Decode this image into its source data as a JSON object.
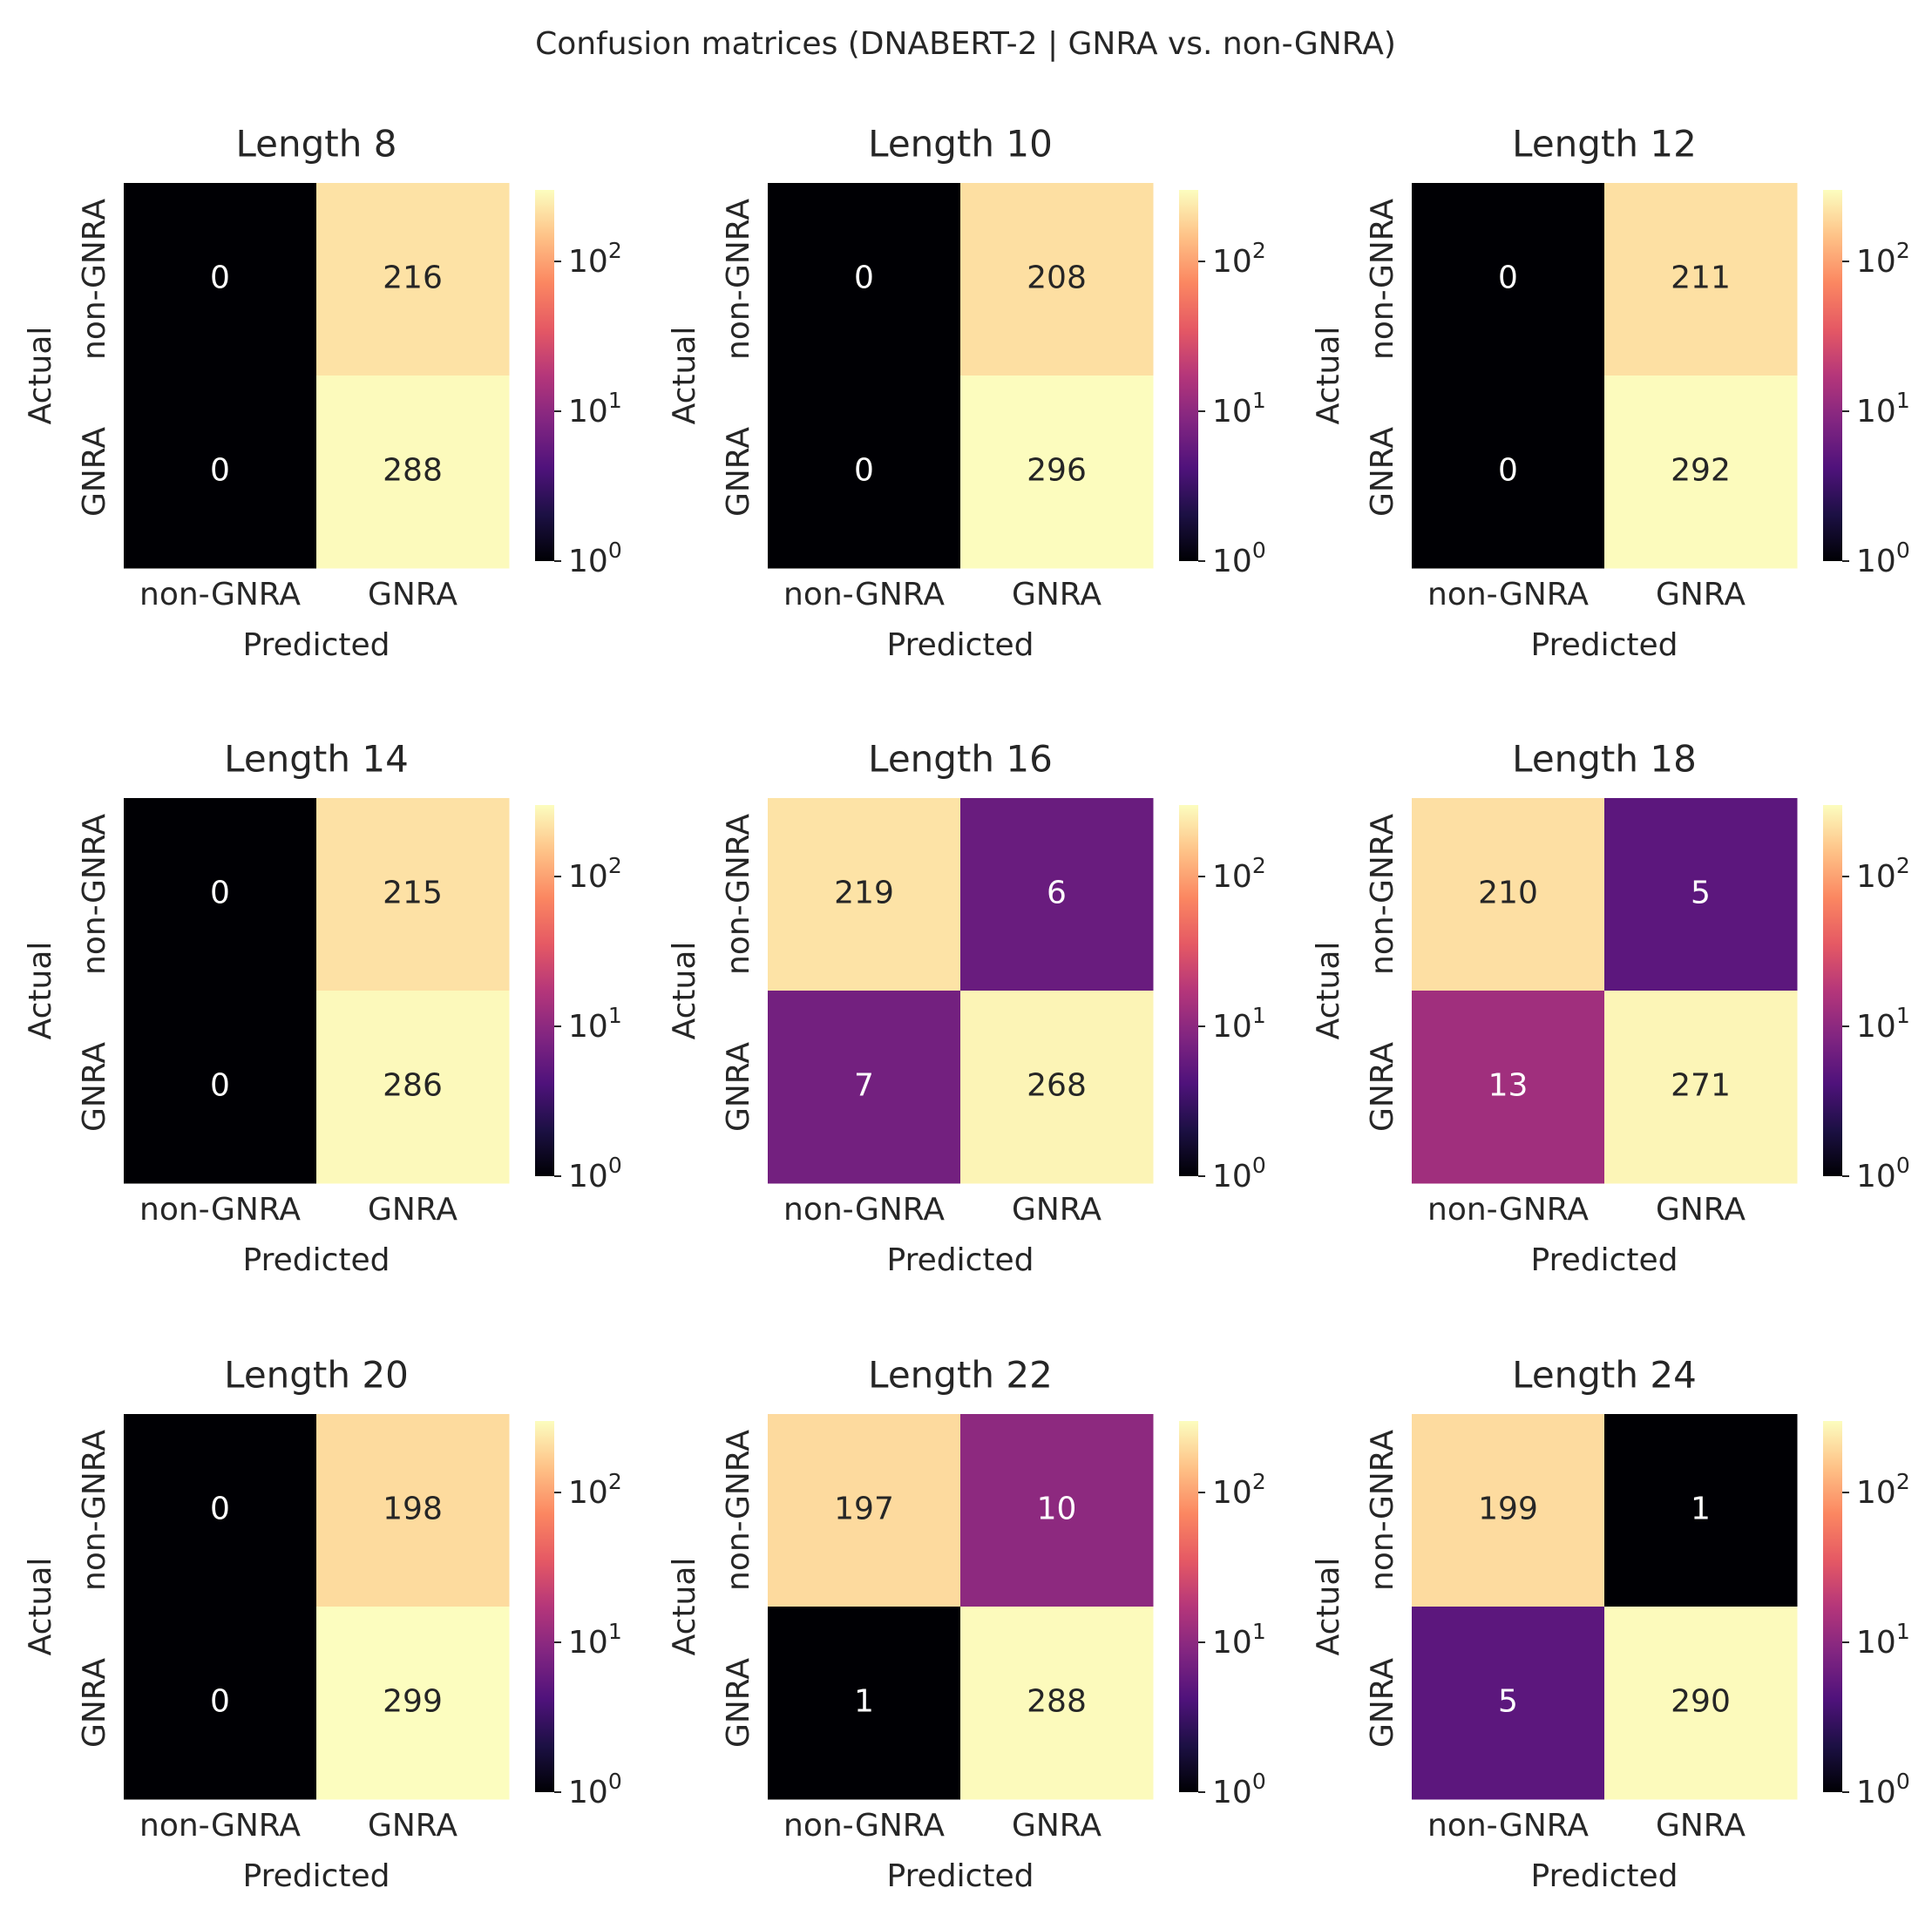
{
  "figure_title": "Confusion matrices (DNABERT-2 | GNRA vs. non-GNRA)",
  "colorbar": {
    "colormap": "magma",
    "scale": "log",
    "range": [
      1,
      300
    ],
    "tick_labels": [
      {
        "base": "10",
        "exp": "0",
        "value": 1
      },
      {
        "base": "10",
        "exp": "1",
        "value": 10
      },
      {
        "base": "10",
        "exp": "2",
        "value": 100
      }
    ]
  },
  "chart_data": [
    {
      "type": "heatmap",
      "title": "Length 8",
      "xlabel": "Predicted",
      "ylabel": "Actual",
      "x_categories": [
        "non-GNRA",
        "GNRA"
      ],
      "y_categories": [
        "non-GNRA",
        "GNRA"
      ],
      "values": [
        [
          0,
          216
        ],
        [
          0,
          288
        ]
      ]
    },
    {
      "type": "heatmap",
      "title": "Length 10",
      "xlabel": "Predicted",
      "ylabel": "Actual",
      "x_categories": [
        "non-GNRA",
        "GNRA"
      ],
      "y_categories": [
        "non-GNRA",
        "GNRA"
      ],
      "values": [
        [
          0,
          208
        ],
        [
          0,
          296
        ]
      ]
    },
    {
      "type": "heatmap",
      "title": "Length 12",
      "xlabel": "Predicted",
      "ylabel": "Actual",
      "x_categories": [
        "non-GNRA",
        "GNRA"
      ],
      "y_categories": [
        "non-GNRA",
        "GNRA"
      ],
      "values": [
        [
          0,
          211
        ],
        [
          0,
          292
        ]
      ]
    },
    {
      "type": "heatmap",
      "title": "Length 14",
      "xlabel": "Predicted",
      "ylabel": "Actual",
      "x_categories": [
        "non-GNRA",
        "GNRA"
      ],
      "y_categories": [
        "non-GNRA",
        "GNRA"
      ],
      "values": [
        [
          0,
          215
        ],
        [
          0,
          286
        ]
      ]
    },
    {
      "type": "heatmap",
      "title": "Length 16",
      "xlabel": "Predicted",
      "ylabel": "Actual",
      "x_categories": [
        "non-GNRA",
        "GNRA"
      ],
      "y_categories": [
        "non-GNRA",
        "GNRA"
      ],
      "values": [
        [
          219,
          6
        ],
        [
          7,
          268
        ]
      ]
    },
    {
      "type": "heatmap",
      "title": "Length 18",
      "xlabel": "Predicted",
      "ylabel": "Actual",
      "x_categories": [
        "non-GNRA",
        "GNRA"
      ],
      "y_categories": [
        "non-GNRA",
        "GNRA"
      ],
      "values": [
        [
          210,
          5
        ],
        [
          13,
          271
        ]
      ]
    },
    {
      "type": "heatmap",
      "title": "Length 20",
      "xlabel": "Predicted",
      "ylabel": "Actual",
      "x_categories": [
        "non-GNRA",
        "GNRA"
      ],
      "y_categories": [
        "non-GNRA",
        "GNRA"
      ],
      "values": [
        [
          0,
          198
        ],
        [
          0,
          299
        ]
      ]
    },
    {
      "type": "heatmap",
      "title": "Length 22",
      "xlabel": "Predicted",
      "ylabel": "Actual",
      "x_categories": [
        "non-GNRA",
        "GNRA"
      ],
      "y_categories": [
        "non-GNRA",
        "GNRA"
      ],
      "values": [
        [
          197,
          10
        ],
        [
          1,
          288
        ]
      ]
    },
    {
      "type": "heatmap",
      "title": "Length 24",
      "xlabel": "Predicted",
      "ylabel": "Actual",
      "x_categories": [
        "non-GNRA",
        "GNRA"
      ],
      "y_categories": [
        "non-GNRA",
        "GNRA"
      ],
      "values": [
        [
          199,
          1
        ],
        [
          5,
          290
        ]
      ]
    }
  ]
}
